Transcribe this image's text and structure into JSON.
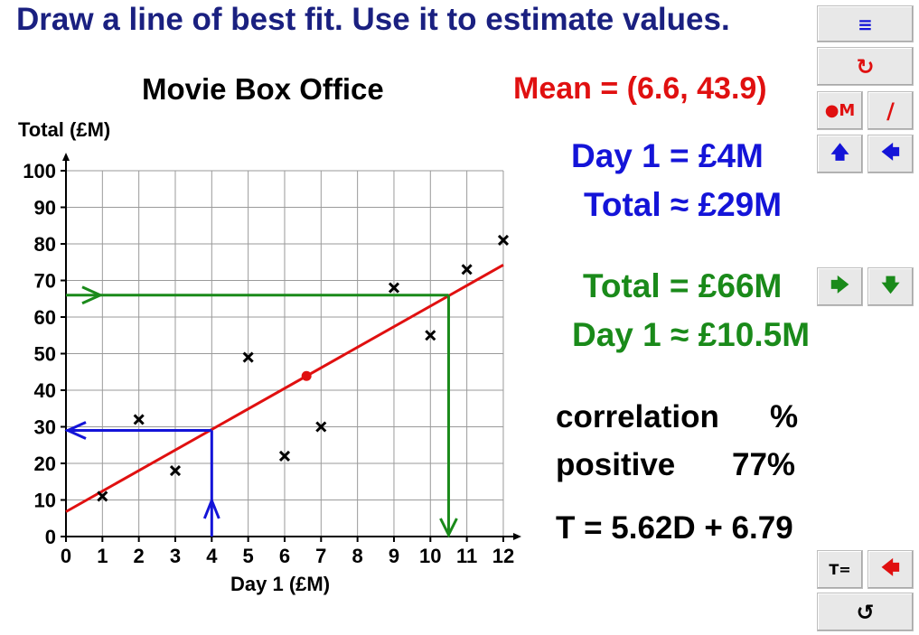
{
  "header": {
    "title": "Draw a line of best fit. Use it to estimate values."
  },
  "chart_data": {
    "type": "scatter",
    "title": "Movie Box Office",
    "xlabel": "Day 1 (£M)",
    "ylabel": "Total (£M)",
    "xlim": [
      0,
      12
    ],
    "ylim": [
      0,
      100
    ],
    "x_ticks": [
      0,
      1,
      2,
      3,
      4,
      5,
      6,
      7,
      8,
      9,
      10,
      11,
      12
    ],
    "y_ticks": [
      0,
      10,
      20,
      30,
      40,
      50,
      60,
      70,
      80,
      90,
      100
    ],
    "grid": true,
    "points": [
      {
        "x": 1,
        "y": 11
      },
      {
        "x": 2,
        "y": 32
      },
      {
        "x": 3,
        "y": 18
      },
      {
        "x": 5,
        "y": 49
      },
      {
        "x": 6,
        "y": 22
      },
      {
        "x": 7,
        "y": 30
      },
      {
        "x": 9,
        "y": 68
      },
      {
        "x": 10,
        "y": 55
      },
      {
        "x": 11,
        "y": 73
      },
      {
        "x": 12,
        "y": 81
      }
    ],
    "mean_point": {
      "x": 6.6,
      "y": 43.9
    },
    "best_fit": {
      "slope": 5.62,
      "intercept": 6.79
    },
    "estimate_from_x": {
      "x": 4,
      "y": 29
    },
    "estimate_from_y": {
      "y": 66,
      "x": 10.5
    }
  },
  "info": {
    "mean": "Mean = (6.6, 43.9)",
    "day1_input": "Day 1 = £4M",
    "total_estimate": "Total ≈ £29M",
    "total_input": "Total = £66M",
    "day1_estimate": "Day 1 ≈ £10.5M",
    "correlation_label": "correlation",
    "correlation_blank": "%",
    "correlation_direction": "positive",
    "correlation_value": "77%",
    "equation": "T = 5.62D + 6.79"
  },
  "buttons": {
    "menu": "≡",
    "reset": "↻",
    "mean_toggle": "●M",
    "line": "/",
    "blue_up": "🡅",
    "blue_left": "🡄",
    "green_right": "🡆",
    "green_down": "🡇",
    "equation_toggle": "T=",
    "red_left": "🡄",
    "undo": "↺"
  },
  "colors": {
    "title": "#1a2080",
    "fit_line": "#e01010",
    "blue": "#1414d8",
    "green": "#1a8a1a",
    "button_bg": "#e8e8e8"
  }
}
